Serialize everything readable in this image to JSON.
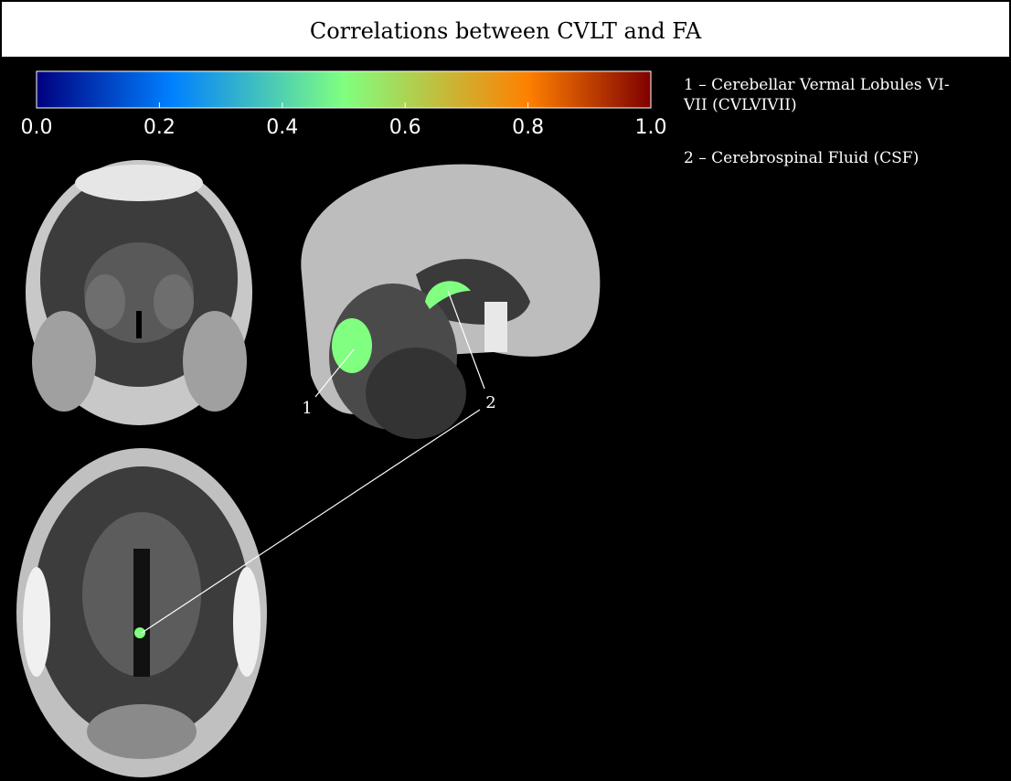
{
  "header": {
    "title": "Correlations between CVLT and FA"
  },
  "colorbar": {
    "range": [
      0,
      1
    ],
    "ticks": [
      {
        "value": 0,
        "label": "0.0"
      },
      {
        "value": 0.2,
        "label": "0.2"
      },
      {
        "value": 0.4,
        "label": "0.4"
      },
      {
        "value": 0.6,
        "label": "0.6"
      },
      {
        "value": 0.8,
        "label": "0.8"
      },
      {
        "value": 1,
        "label": "1.0"
      }
    ]
  },
  "legend": {
    "items": [
      "1 – Cerebellar Vermal Lobules VI-VII (CVLVIVII)",
      "2 – Cerebrospinal Fluid (CSF)"
    ]
  },
  "labels": [
    "1",
    "2"
  ]
}
